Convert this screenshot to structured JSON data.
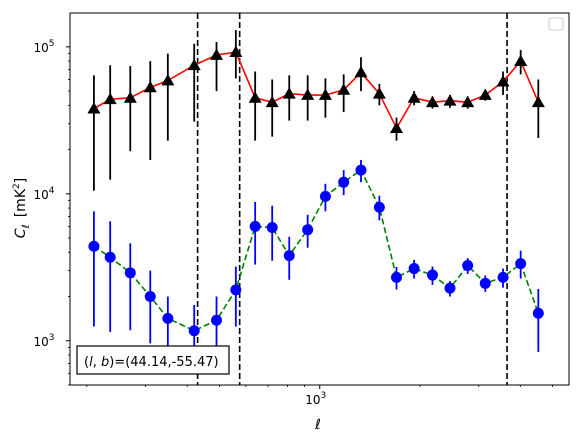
{
  "chart_data": {
    "type": "scatter",
    "title": "",
    "xlabel": "ℓ",
    "ylabel_symbol": "C",
    "ylabel_sub": "ℓ",
    "ylabel_unit": "[mK",
    "ylabel_unit_sup": "2",
    "ylabel_unit_close": "]",
    "x_scale": "log",
    "y_scale": "log",
    "xlim": [
      178,
      5600
    ],
    "ylim": [
      500,
      170000
    ],
    "grid": false,
    "legend": "top-right",
    "x_ticks": [
      {
        "value": 1000,
        "base": "10",
        "exp": "3"
      }
    ],
    "y_ticks": [
      {
        "value": 1000,
        "base": "10",
        "exp": "3"
      },
      {
        "value": 10000,
        "base": "10",
        "exp": "4"
      },
      {
        "value": 100000,
        "base": "10",
        "exp": "5"
      }
    ],
    "vlines": [
      430,
      575,
      3650
    ],
    "annotation": "(l, b)=(44.14,-55.47)",
    "annotation_parts": {
      "prefix": "(",
      "l": "l",
      "sep": ", ",
      "b": "b",
      "suffix": ")=(44.14,-55.47)"
    },
    "series": [
      {
        "marker": "triangle",
        "color": "#000000",
        "line_color": "#ff0000",
        "line_style": "solid",
        "points": [
          {
            "x": 210,
            "y": 38000,
            "lo": 10500,
            "hi": 64000
          },
          {
            "x": 235,
            "y": 44000,
            "lo": 12500,
            "hi": 75000
          },
          {
            "x": 270,
            "y": 45000,
            "lo": 19500,
            "hi": 74000
          },
          {
            "x": 310,
            "y": 53000,
            "lo": 17000,
            "hi": 80000
          },
          {
            "x": 350,
            "y": 59000,
            "lo": 23000,
            "hi": 90000
          },
          {
            "x": 420,
            "y": 75000,
            "lo": 31000,
            "hi": 105000
          },
          {
            "x": 490,
            "y": 88000,
            "lo": 50000,
            "hi": 108000
          },
          {
            "x": 560,
            "y": 92000,
            "lo": 61000,
            "hi": 130000
          },
          {
            "x": 640,
            "y": 45000,
            "lo": 23000,
            "hi": 68000
          },
          {
            "x": 720,
            "y": 42000,
            "lo": 24500,
            "hi": 60000
          },
          {
            "x": 810,
            "y": 48000,
            "lo": 31500,
            "hi": 64000
          },
          {
            "x": 920,
            "y": 47000,
            "lo": 31500,
            "hi": 64000
          },
          {
            "x": 1040,
            "y": 47000,
            "lo": 33000,
            "hi": 61000
          },
          {
            "x": 1180,
            "y": 51000,
            "lo": 36000,
            "hi": 65000
          },
          {
            "x": 1330,
            "y": 67000,
            "lo": 50000,
            "hi": 85000
          },
          {
            "x": 1510,
            "y": 48000,
            "lo": 40000,
            "hi": 56000
          },
          {
            "x": 1700,
            "y": 28000,
            "lo": 23000,
            "hi": 33000
          },
          {
            "x": 1920,
            "y": 45000,
            "lo": 40000,
            "hi": 50000
          },
          {
            "x": 2180,
            "y": 42000,
            "lo": 38000,
            "hi": 46000
          },
          {
            "x": 2460,
            "y": 43000,
            "lo": 38500,
            "hi": 47000
          },
          {
            "x": 2780,
            "y": 42000,
            "lo": 38000,
            "hi": 46000
          },
          {
            "x": 3140,
            "y": 47000,
            "lo": 43000,
            "hi": 51000
          },
          {
            "x": 3550,
            "y": 58000,
            "lo": 47000,
            "hi": 68000
          },
          {
            "x": 4010,
            "y": 80000,
            "lo": 65000,
            "hi": 95000
          },
          {
            "x": 4530,
            "y": 42000,
            "lo": 24000,
            "hi": 60000
          }
        ]
      },
      {
        "marker": "circle",
        "color": "#0000ff",
        "line_color": "#008000",
        "line_style": "dashed",
        "points": [
          {
            "x": 210,
            "y": 4400,
            "lo": 1250,
            "hi": 7600
          },
          {
            "x": 235,
            "y": 3700,
            "lo": 1150,
            "hi": 6500
          },
          {
            "x": 270,
            "y": 2900,
            "lo": 1180,
            "hi": 4600
          },
          {
            "x": 310,
            "y": 2000,
            "lo": 960,
            "hi": 3000
          },
          {
            "x": 350,
            "y": 1420,
            "lo": 850,
            "hi": 2000
          },
          {
            "x": 420,
            "y": 1170,
            "lo": 620,
            "hi": 1750
          },
          {
            "x": 490,
            "y": 1380,
            "lo": 760,
            "hi": 2000
          },
          {
            "x": 560,
            "y": 2220,
            "lo": 1250,
            "hi": 3200
          },
          {
            "x": 640,
            "y": 6000,
            "lo": 3300,
            "hi": 8800
          },
          {
            "x": 720,
            "y": 5900,
            "lo": 3500,
            "hi": 8300
          },
          {
            "x": 810,
            "y": 3800,
            "lo": 2600,
            "hi": 5100
          },
          {
            "x": 920,
            "y": 5700,
            "lo": 4300,
            "hi": 7200
          },
          {
            "x": 1040,
            "y": 9600,
            "lo": 7600,
            "hi": 11700
          },
          {
            "x": 1180,
            "y": 12000,
            "lo": 9800,
            "hi": 14500
          },
          {
            "x": 1330,
            "y": 14500,
            "lo": 12000,
            "hi": 17000
          },
          {
            "x": 1510,
            "y": 8100,
            "lo": 6600,
            "hi": 9700
          },
          {
            "x": 1700,
            "y": 2700,
            "lo": 2230,
            "hi": 3180
          },
          {
            "x": 1920,
            "y": 3100,
            "lo": 2650,
            "hi": 3550
          },
          {
            "x": 2180,
            "y": 2800,
            "lo": 2400,
            "hi": 3200
          },
          {
            "x": 2460,
            "y": 2280,
            "lo": 2000,
            "hi": 2550
          },
          {
            "x": 2780,
            "y": 3250,
            "lo": 2850,
            "hi": 3650
          },
          {
            "x": 3140,
            "y": 2460,
            "lo": 2150,
            "hi": 2780
          },
          {
            "x": 3550,
            "y": 2700,
            "lo": 2300,
            "hi": 3100
          },
          {
            "x": 4010,
            "y": 3350,
            "lo": 2650,
            "hi": 4100
          },
          {
            "x": 4530,
            "y": 1540,
            "lo": 840,
            "hi": 2250
          }
        ]
      }
    ]
  }
}
